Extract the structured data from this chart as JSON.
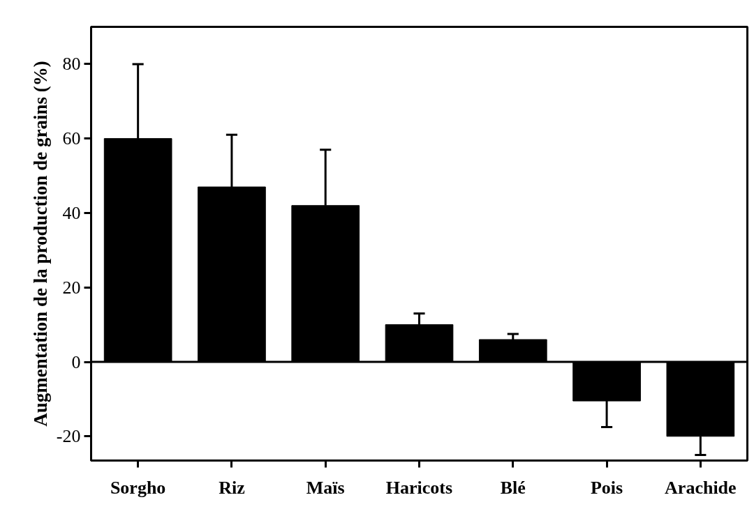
{
  "chart_data": {
    "type": "bar",
    "ylabel": "Augmentation de la production de grains (%)",
    "categories": [
      "Sorgho",
      "Riz",
      "Maïs",
      "Haricots",
      "Blé",
      "Pois",
      "Arachide"
    ],
    "values": [
      60,
      47,
      42,
      10,
      6,
      -10.5,
      -20
    ],
    "errors": [
      [
        60,
        80
      ],
      [
        47,
        61
      ],
      [
        42,
        57
      ],
      [
        10,
        13
      ],
      [
        6,
        7.5
      ],
      [
        -17.5,
        -10.5
      ],
      [
        -25,
        -20
      ]
    ],
    "ref_lines": [
      {
        "axis": "y",
        "value": 0,
        "color": "#000000"
      }
    ],
    "color": "#000000",
    "ylim": [
      -26.5,
      90
    ],
    "yticks": [
      {
        "value": -20,
        "label": "-20"
      },
      0,
      20,
      40,
      60,
      80
    ],
    "grid": false
  }
}
